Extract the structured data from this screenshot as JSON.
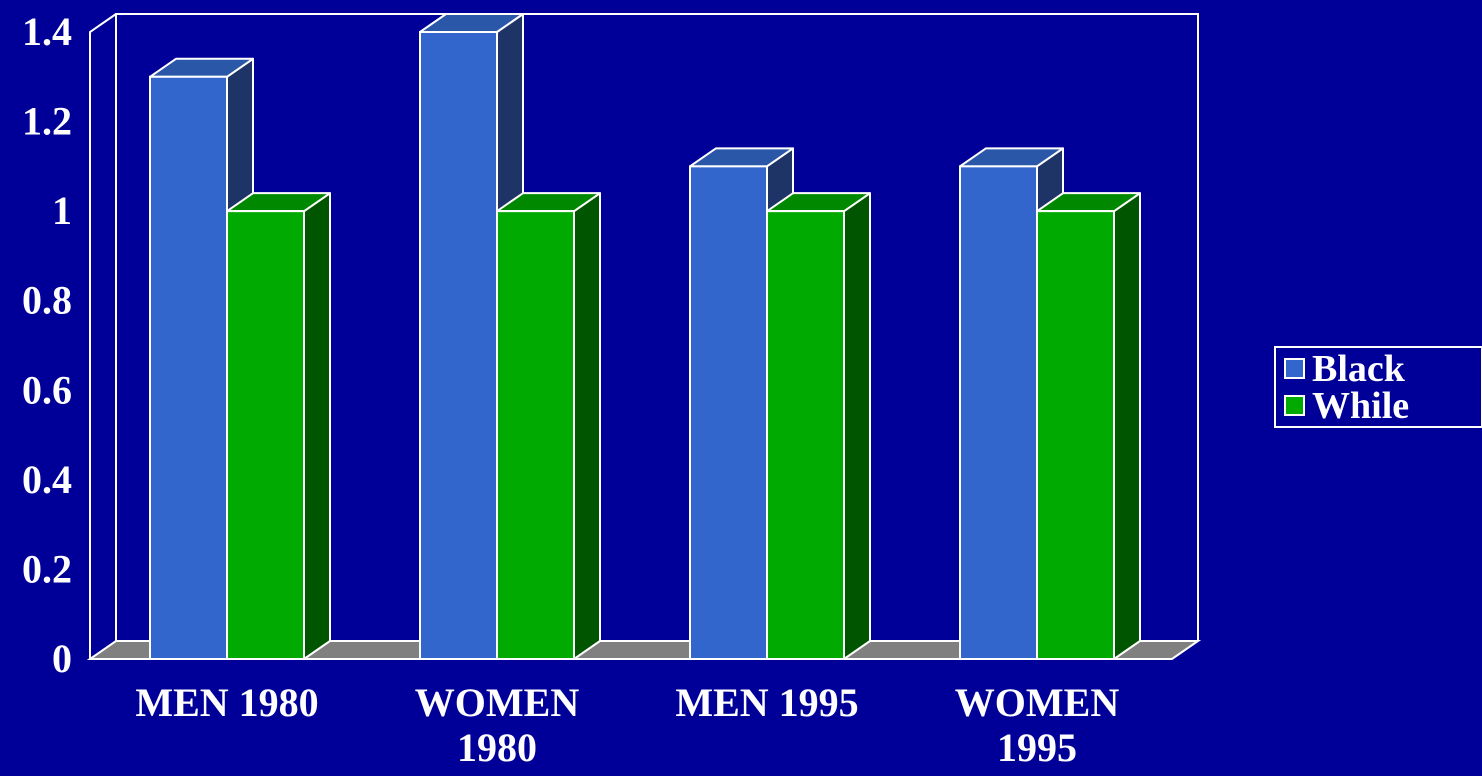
{
  "chart_data": {
    "type": "bar",
    "categories": [
      "MEN 1980",
      "WOMEN 1980",
      "MEN 1995",
      "WOMEN 1995"
    ],
    "series": [
      {
        "name": "Black",
        "values": [
          1.3,
          1.4,
          1.1,
          1.1
        ]
      },
      {
        "name": "While",
        "values": [
          1.0,
          1.0,
          1.0,
          1.0
        ]
      }
    ],
    "ylim": [
      0,
      1.4
    ],
    "yticks": [
      "0",
      "0.2",
      "0.4",
      "0.6",
      "0.8",
      "1",
      "1.2",
      "1.4"
    ],
    "legend": "right",
    "grid": false,
    "three_d": true,
    "colors": {
      "background": "#000099",
      "series": [
        "#3366cc",
        "#00aa00"
      ],
      "series_top": [
        "#2b57a8",
        "#008800"
      ],
      "series_side": [
        "#1e3366",
        "#005500"
      ],
      "floor": "#808080",
      "frame": "#ffffff"
    }
  }
}
